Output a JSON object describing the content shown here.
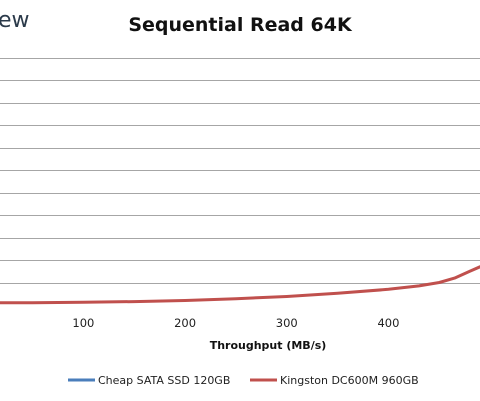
{
  "logo": {
    "text": "ew"
  },
  "chart_data": {
    "type": "line",
    "title": "Sequential Read 64K",
    "xlabel": "Throughput (MB/s)",
    "ylabel": "",
    "x_ticks": [
      100,
      200,
      300,
      400
    ],
    "xlim": [
      18,
      490
    ],
    "ylim": [
      0,
      11
    ],
    "grid": true,
    "legend_position": "bottom",
    "series": [
      {
        "name": "Cheap SATA SSD 120GB",
        "color": "#4a7ebb",
        "points": []
      },
      {
        "name": "Kingston DC600M 960GB",
        "color": "#c0504d",
        "points": [
          [
            18,
            0.1
          ],
          [
            50,
            0.1
          ],
          [
            100,
            0.12
          ],
          [
            150,
            0.15
          ],
          [
            200,
            0.2
          ],
          [
            250,
            0.28
          ],
          [
            300,
            0.38
          ],
          [
            350,
            0.52
          ],
          [
            400,
            0.7
          ],
          [
            430,
            0.85
          ],
          [
            450,
            1.0
          ],
          [
            465,
            1.2
          ],
          [
            480,
            1.5
          ],
          [
            490,
            1.7
          ]
        ]
      }
    ]
  }
}
